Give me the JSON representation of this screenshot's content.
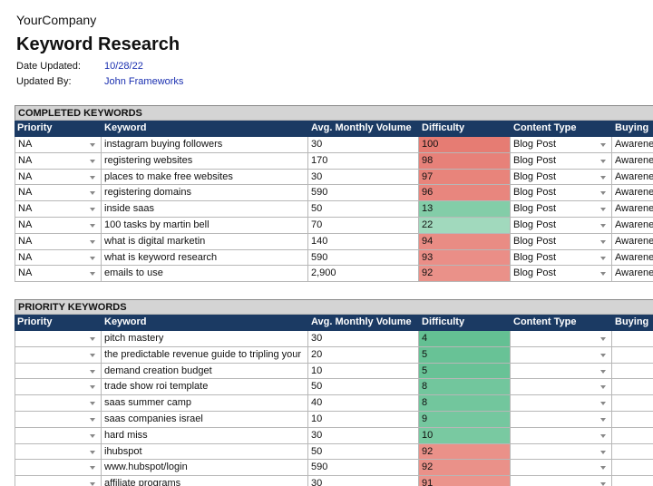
{
  "header": {
    "company": "YourCompany",
    "title": "Keyword Research",
    "meta": [
      {
        "label": "Date Updated:",
        "value": "10/28/22"
      },
      {
        "label": "Updated By:",
        "value": "John Frameworks"
      }
    ]
  },
  "sections": [
    {
      "title": "COMPLETED KEYWORDS",
      "columns": [
        "Priority",
        "Keyword",
        "Avg. Monthly Volume",
        "Difficulty",
        "Content Type",
        "Buying"
      ],
      "rows": [
        [
          "NA",
          "instagram buying followers",
          "30",
          100,
          "Blog Post",
          "Awarene"
        ],
        [
          "NA",
          "registering websites",
          "170",
          98,
          "Blog Post",
          "Awarene"
        ],
        [
          "NA",
          "places to make free websites",
          "30",
          97,
          "Blog Post",
          "Awarene"
        ],
        [
          "NA",
          "registering domains",
          "590",
          96,
          "Blog Post",
          "Awarene"
        ],
        [
          "NA",
          "inside saas",
          "50",
          13,
          "Blog Post",
          "Awarene"
        ],
        [
          "NA",
          "100 tasks by martin bell",
          "70",
          22,
          "Blog Post",
          "Awarene"
        ],
        [
          "NA",
          "what is digital marketin",
          "140",
          94,
          "Blog Post",
          "Awarene"
        ],
        [
          "NA",
          "what is keyword research",
          "590",
          93,
          "Blog Post",
          "Awarene"
        ],
        [
          "NA",
          "emails to use",
          "2,900",
          92,
          "Blog Post",
          "Awarene"
        ]
      ]
    },
    {
      "title": "PRIORITY KEYWORDS",
      "columns": [
        "Priority",
        "Keyword",
        "Avg. Monthly Volume",
        "Difficulty",
        "Content Type",
        "Buying"
      ],
      "rows": [
        [
          null,
          "pitch mastery",
          "30",
          4,
          null,
          null
        ],
        [
          null,
          "the predictable revenue guide to tripling your",
          "20",
          5,
          null,
          null
        ],
        [
          null,
          "demand creation budget",
          "10",
          5,
          null,
          null
        ],
        [
          null,
          "trade show roi template",
          "50",
          8,
          null,
          null
        ],
        [
          null,
          "saas summer camp",
          "40",
          8,
          null,
          null
        ],
        [
          null,
          "saas companies israel",
          "10",
          9,
          null,
          null
        ],
        [
          null,
          "hard miss",
          "30",
          10,
          null,
          null
        ],
        [
          null,
          "ihubspot",
          "50",
          92,
          null,
          null
        ],
        [
          null,
          "www.hubspot/login",
          "590",
          92,
          null,
          null
        ],
        [
          null,
          "affiliate programs",
          "30",
          91,
          null,
          null
        ]
      ]
    }
  ]
}
